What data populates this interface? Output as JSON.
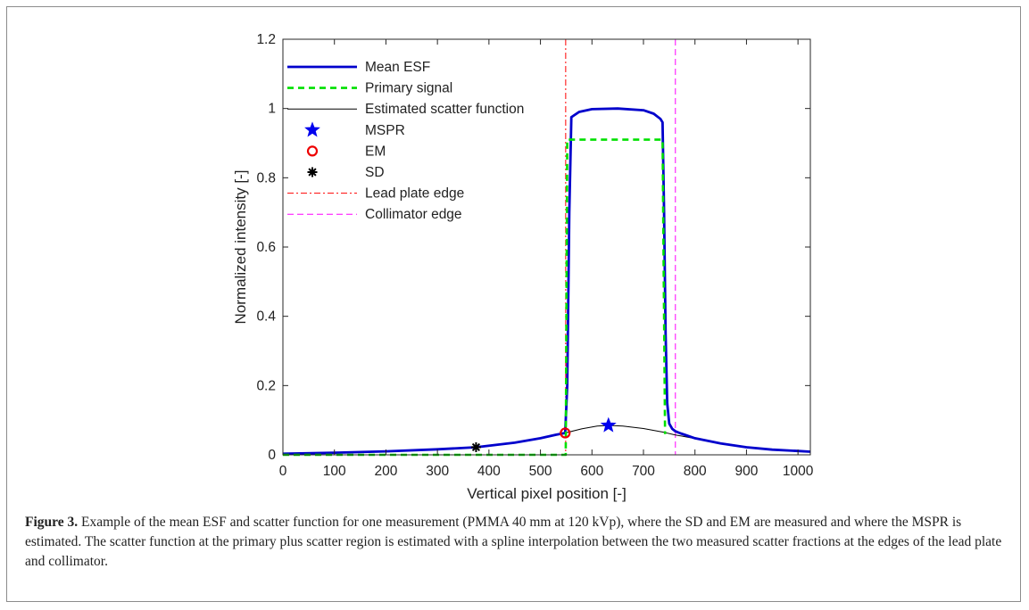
{
  "figure": {
    "caption_label": "Figure 3.",
    "caption_text": " Example of the mean ESF and scatter function for one measurement (PMMA 40 mm at 120 kVp), where the SD and EM are measured and where the MSPR is estimated. The scatter function at the primary plus scatter region is estimated with a spline interpolation between the two measured scatter fractions at the edges of the lead plate and collimator."
  },
  "chart_data": {
    "type": "line",
    "title": "",
    "xlabel": "Vertical pixel position [-]",
    "ylabel": "Normalized intensity [-]",
    "xlim": [
      0,
      1024
    ],
    "ylim": [
      0,
      1.2
    ],
    "xticks": [
      0,
      100,
      200,
      300,
      400,
      500,
      600,
      700,
      800,
      900,
      1000
    ],
    "yticks": [
      0,
      0.2,
      0.4,
      0.6,
      0.8,
      1,
      1.2
    ],
    "xtick_labels": [
      "0",
      "100",
      "200",
      "300",
      "400",
      "500",
      "600",
      "700",
      "800",
      "900",
      "1000"
    ],
    "ytick_labels": [
      "0",
      "0.2",
      "0.4",
      "0.6",
      "0.8",
      "1",
      "1.2"
    ],
    "grid": false,
    "legend_position": "top-left",
    "series": [
      {
        "name": "Mean ESF",
        "style": "solid",
        "color": "#0000cc",
        "x": [
          0,
          100,
          200,
          300,
          375,
          450,
          500,
          530,
          548,
          552,
          556,
          560,
          575,
          600,
          650,
          700,
          720,
          733,
          737,
          740,
          743,
          746,
          750,
          756,
          762,
          770,
          780,
          800,
          850,
          900,
          950,
          1000,
          1024
        ],
        "y": [
          0.003,
          0.006,
          0.01,
          0.016,
          0.022,
          0.035,
          0.048,
          0.058,
          0.063,
          0.2,
          0.7,
          0.975,
          0.99,
          0.998,
          1.0,
          0.995,
          0.985,
          0.97,
          0.96,
          0.7,
          0.35,
          0.15,
          0.09,
          0.075,
          0.068,
          0.063,
          0.058,
          0.048,
          0.033,
          0.022,
          0.015,
          0.011,
          0.009
        ]
      },
      {
        "name": "Primary signal",
        "style": "dashed",
        "color": "#00e000",
        "x": [
          0,
          549,
          552,
          737,
          742
        ],
        "y": [
          0.0,
          0.0,
          0.91,
          0.91,
          0.06
        ]
      },
      {
        "name": "Estimated scatter function",
        "style": "solid-thin",
        "color": "#000000",
        "x": [
          0,
          100,
          200,
          300,
          375,
          450,
          500,
          548,
          580,
          610,
          632,
          660,
          700,
          740,
          760,
          800,
          850,
          900,
          950,
          1000,
          1024
        ],
        "y": [
          0.003,
          0.006,
          0.01,
          0.016,
          0.022,
          0.035,
          0.048,
          0.063,
          0.075,
          0.083,
          0.085,
          0.083,
          0.076,
          0.065,
          0.058,
          0.047,
          0.033,
          0.022,
          0.015,
          0.011,
          0.009
        ]
      },
      {
        "name": "MSPR",
        "style": "marker-star",
        "color": "#0000ee",
        "x": [
          632
        ],
        "y": [
          0.085
        ]
      },
      {
        "name": "EM",
        "style": "marker-circle",
        "color": "#ee0000",
        "x": [
          548
        ],
        "y": [
          0.063
        ]
      },
      {
        "name": "SD",
        "style": "marker-asterisk",
        "color": "#000000",
        "x": [
          375
        ],
        "y": [
          0.022
        ]
      },
      {
        "name": "Lead plate edge",
        "style": "vline-dashdot",
        "color": "#ff0000",
        "x": [
          549
        ]
      },
      {
        "name": "Collimator edge",
        "style": "vline-dashed",
        "color": "#ff00ff",
        "x": [
          762
        ]
      }
    ]
  }
}
